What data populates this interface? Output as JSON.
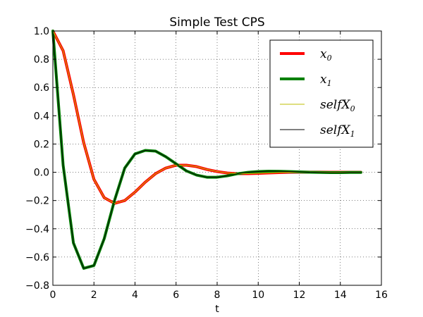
{
  "chart_data": {
    "type": "line",
    "title": "Simple Test CPS",
    "xlabel": "t",
    "ylabel": "",
    "xlim": [
      0,
      16
    ],
    "ylim": [
      -0.8,
      1.0
    ],
    "xticks": [
      0,
      2,
      4,
      6,
      8,
      10,
      12,
      14,
      16
    ],
    "yticks": [
      -0.8,
      -0.6,
      -0.4,
      -0.2,
      0.0,
      0.2,
      0.4,
      0.6,
      0.8,
      1.0
    ],
    "grid": true,
    "legend_position": "top-right",
    "x": [
      0,
      0.5,
      1,
      1.5,
      2,
      2.5,
      3,
      3.5,
      4,
      4.5,
      5,
      5.5,
      6,
      6.5,
      7,
      7.5,
      8,
      8.5,
      9,
      9.5,
      10,
      10.5,
      11,
      11.5,
      12,
      12.5,
      13,
      13.5,
      14,
      14.5,
      15
    ],
    "series": [
      {
        "label_main": "x",
        "label_sub": "0",
        "color": "#ff0000",
        "width": 4,
        "values": [
          1.0,
          0.86,
          0.55,
          0.21,
          -0.05,
          -0.18,
          -0.22,
          -0.2,
          -0.14,
          -0.07,
          -0.01,
          0.03,
          0.05,
          0.05,
          0.04,
          0.02,
          0.005,
          -0.005,
          -0.01,
          -0.01,
          -0.008,
          -0.005,
          -0.002,
          0.0,
          0.001,
          0.001,
          0.001,
          0.0,
          0.0,
          0.0,
          0.0
        ]
      },
      {
        "label_main": "x",
        "label_sub": "1",
        "color": "#008000",
        "width": 4,
        "values": [
          1.0,
          0.05,
          -0.5,
          -0.68,
          -0.66,
          -0.47,
          -0.2,
          0.03,
          0.13,
          0.155,
          0.15,
          0.11,
          0.06,
          0.01,
          -0.02,
          -0.035,
          -0.035,
          -0.025,
          -0.01,
          0.0,
          0.005,
          0.008,
          0.007,
          0.005,
          0.003,
          0.0,
          -0.001,
          -0.002,
          -0.002,
          -0.001,
          -0.001
        ]
      },
      {
        "label_main": "selfX",
        "label_sub": "0",
        "color": "#bfbf00",
        "width": 1,
        "values": [
          1.0,
          0.86,
          0.55,
          0.21,
          -0.05,
          -0.18,
          -0.22,
          -0.2,
          -0.14,
          -0.07,
          -0.01,
          0.03,
          0.05,
          0.05,
          0.04,
          0.02,
          0.005,
          -0.005,
          -0.01,
          -0.01,
          -0.008,
          -0.005,
          -0.002,
          0.0,
          0.001,
          0.001,
          0.001,
          0.0,
          0.0,
          0.0,
          0.0
        ]
      },
      {
        "label_main": "selfX",
        "label_sub": "1",
        "color": "#000000",
        "width": 1,
        "values": [
          1.0,
          0.05,
          -0.5,
          -0.68,
          -0.66,
          -0.47,
          -0.2,
          0.03,
          0.13,
          0.155,
          0.15,
          0.11,
          0.06,
          0.01,
          -0.02,
          -0.035,
          -0.035,
          -0.025,
          -0.01,
          0.0,
          0.005,
          0.008,
          0.007,
          0.005,
          0.003,
          0.0,
          -0.001,
          -0.002,
          -0.002,
          -0.001,
          -0.001
        ]
      }
    ]
  }
}
